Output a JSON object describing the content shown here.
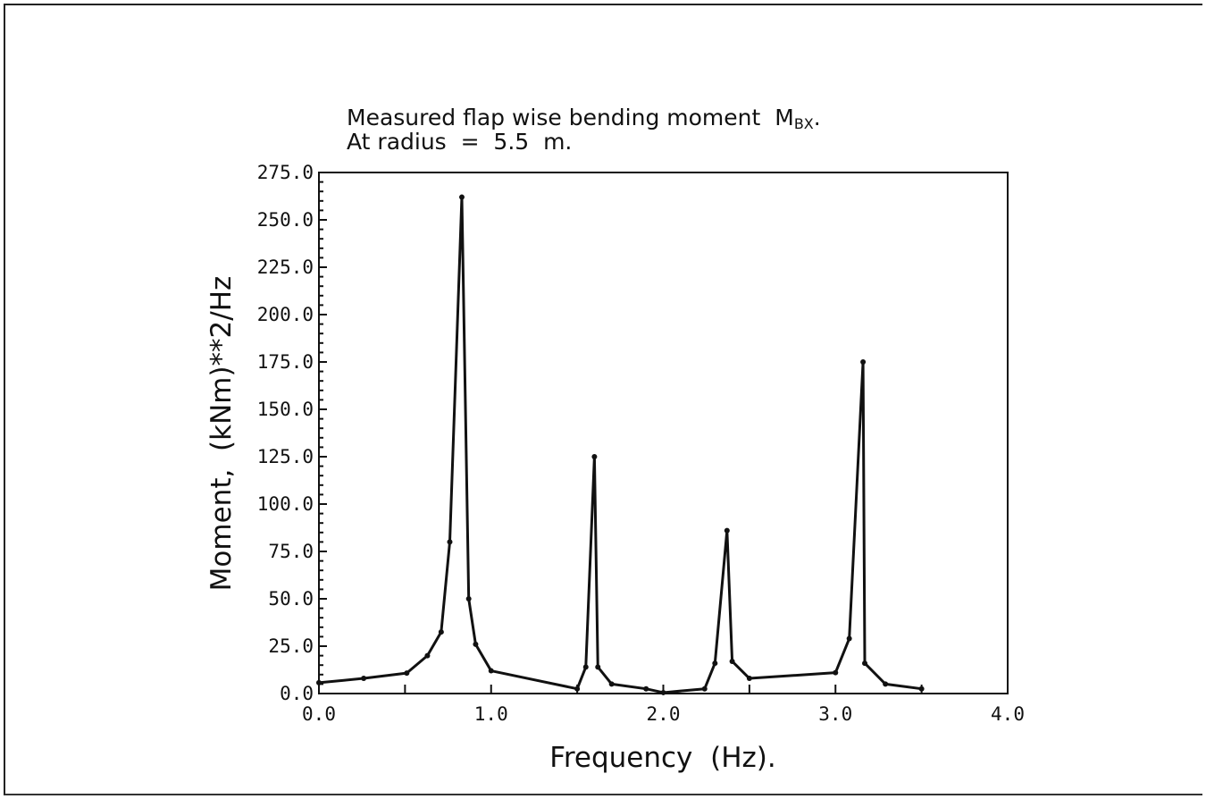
{
  "chart_data": {
    "type": "line",
    "title_line1": "Measured flap wise bending moment",
    "title_symbol": "M",
    "title_subscript": "BX",
    "title_suffix": ".",
    "title_line2": "At radius  =  5.5  m.",
    "xlabel": "Frequency  (Hz).",
    "ylabel": "Moment,  (kNm)**2/Hz",
    "xlim": [
      0,
      4
    ],
    "ylim": [
      0,
      275
    ],
    "xticks": [
      "0.0",
      "1.0",
      "2.0",
      "3.0",
      "4.0"
    ],
    "yticks": [
      "0.0",
      "25.0",
      "50.0",
      "75.0",
      "100.0",
      "125.0",
      "150.0",
      "175.0",
      "200.0",
      "225.0",
      "250.0",
      "275.0"
    ],
    "grid": false,
    "line_color": "#111111",
    "x": [
      0.0,
      0.26,
      0.51,
      0.63,
      0.71,
      0.76,
      0.83,
      0.87,
      0.91,
      1.0,
      1.5,
      1.55,
      1.6,
      1.62,
      1.7,
      1.9,
      2.0,
      2.24,
      2.3,
      2.37,
      2.4,
      2.5,
      3.0,
      3.08,
      3.16,
      3.17,
      3.29,
      3.5
    ],
    "y": [
      5.7,
      8.0,
      10.8,
      20,
      32.5,
      80,
      262,
      50,
      26,
      12,
      2.5,
      14,
      125,
      14,
      5,
      2.5,
      0.5,
      2.5,
      16,
      86,
      17,
      8,
      11,
      29,
      175,
      16,
      5,
      2.5
    ]
  }
}
